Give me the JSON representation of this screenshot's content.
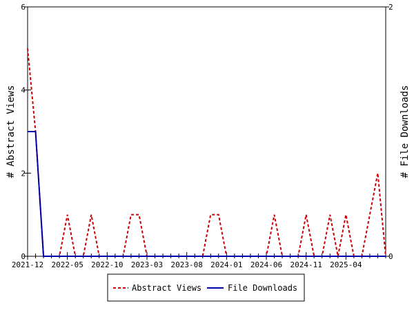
{
  "chart_data": {
    "type": "line",
    "xlabel": "",
    "ylabel_left": "# Abstract Views",
    "ylabel_right": "# File Downloads",
    "ylim_left": [
      0,
      6
    ],
    "ylim_right": [
      0,
      2
    ],
    "yticks_left": [
      0,
      2,
      4,
      6
    ],
    "yticks_right": [
      0,
      2
    ],
    "grid": false,
    "legend_position": "bottom",
    "x": [
      "2021-12",
      "2022-01",
      "2022-02",
      "2022-03",
      "2022-04",
      "2022-05",
      "2022-06",
      "2022-07",
      "2022-08",
      "2022-09",
      "2022-10",
      "2022-11",
      "2022-12",
      "2023-01",
      "2023-02",
      "2023-03",
      "2023-04",
      "2023-05",
      "2023-06",
      "2023-07",
      "2023-08",
      "2023-09",
      "2023-10",
      "2023-11",
      "2023-12",
      "2024-01",
      "2024-02",
      "2024-03",
      "2024-04",
      "2024-05",
      "2024-06",
      "2024-07",
      "2024-08",
      "2024-09",
      "2024-10",
      "2024-11",
      "2024-12",
      "2025-01",
      "2025-02",
      "2025-03",
      "2025-04",
      "2025-05",
      "2025-06",
      "2025-07",
      "2025-08",
      "2025-09"
    ],
    "x_tick_labels": [
      "2021-12",
      "2022-05",
      "2022-10",
      "2023-03",
      "2023-08",
      "2024-01",
      "2024-06",
      "2024-11",
      "2025-04"
    ],
    "series": [
      {
        "name": "Abstract Views",
        "axis": "left",
        "color": "#cc0000",
        "dash": "dashed",
        "values": [
          5,
          3,
          0,
          0,
          0,
          1,
          0,
          0,
          1,
          0,
          0,
          0,
          0,
          1,
          1,
          0,
          0,
          0,
          0,
          0,
          0,
          0,
          0,
          1,
          1,
          0,
          0,
          0,
          0,
          0,
          0,
          1,
          0,
          0,
          0,
          1,
          0,
          0,
          1,
          0,
          1,
          0,
          0,
          1,
          2,
          0
        ]
      },
      {
        "name": "File Downloads",
        "axis": "right",
        "color": "#0000aa",
        "dash": "solid",
        "values": [
          1,
          1,
          0,
          0,
          0,
          0,
          0,
          0,
          0,
          0,
          0,
          0,
          0,
          0,
          0,
          0,
          0,
          0,
          0,
          0,
          0,
          0,
          0,
          0,
          0,
          0,
          0,
          0,
          0,
          0,
          0,
          0,
          0,
          0,
          0,
          0,
          0,
          0,
          0,
          0,
          0,
          0,
          0,
          0,
          0,
          0
        ]
      }
    ]
  }
}
